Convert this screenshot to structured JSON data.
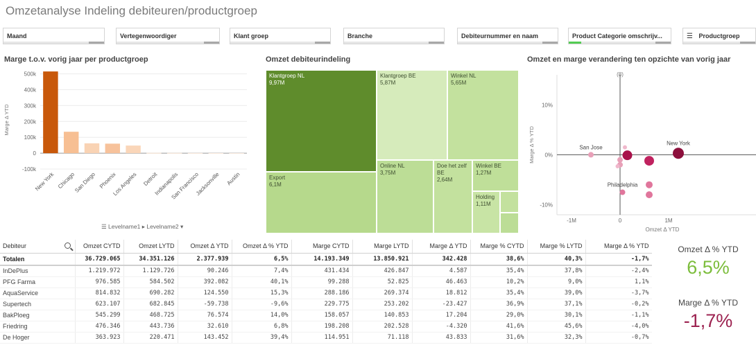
{
  "app": {
    "title": "Omzetanalyse Indeling debiteuren/productgroep"
  },
  "filters": [
    {
      "label": "Maand"
    },
    {
      "label": "Vertegenwoordiger"
    },
    {
      "label": "Klant groep"
    },
    {
      "label": "Branche"
    },
    {
      "label": "Debiteurnummer en naam"
    },
    {
      "label": "Product Categorie omschrijv..."
    },
    {
      "label": "Productgroep",
      "icon": "drill-down-icon"
    }
  ],
  "bar_panel": {
    "title": "Marge t.o.v. vorig jaar per productgroep",
    "level_nav": {
      "level1": "Levelname1",
      "level2": "Levelname2"
    }
  },
  "treemap_panel": {
    "title": "Omzet debiteurindeling",
    "tiles": [
      {
        "name": "Klantgroep NL",
        "value": "9,97M",
        "color": "#5f8c2c"
      },
      {
        "name": "Export",
        "value": "6,1M",
        "color": "#b6d98c"
      },
      {
        "name": "Klantgroep BE",
        "value": "5,87M",
        "color": "#d6ebbb"
      },
      {
        "name": "Winkel NL",
        "value": "5,65M",
        "color": "#c3e19e"
      },
      {
        "name": "Online NL",
        "value": "3,75M",
        "color": "#bcdd96"
      },
      {
        "name": "Doe het zelf BE",
        "value": "2,64M",
        "color": "#c3e19e"
      },
      {
        "name": "Winkel BE",
        "value": "1,27M",
        "color": "#bfdf99"
      },
      {
        "name": "Holding",
        "value": "1,11M",
        "color": "#c8e4a5"
      }
    ]
  },
  "scatter_panel": {
    "title": "Omzet en marge verandering ten opzichte van vorig jaar",
    "cluster_label": "(8)",
    "point_labels": [
      "San Jose",
      "New York",
      "Philadelphia"
    ]
  },
  "chart_data": [
    {
      "type": "bar",
      "title": "Marge t.o.v. vorig jaar per productgroep",
      "ylabel": "Marge Δ YTD",
      "categories": [
        "New York",
        "Chicago",
        "San Diego",
        "Phoenix",
        "Los Angeles",
        "Detroit",
        "Indianapolis",
        "San Francisco",
        "Jacksonville",
        "Austin"
      ],
      "values": [
        515000,
        135000,
        62000,
        60000,
        48000,
        2000,
        1500,
        1000,
        500,
        300
      ],
      "ylim": [
        -100000,
        520000
      ],
      "yticks": [
        -100000,
        0,
        100000,
        200000,
        300000,
        400000,
        500000
      ],
      "ytick_labels": [
        "-100k",
        "0",
        "100k",
        "200k",
        "300k",
        "400k",
        "500k"
      ],
      "colors": [
        "#c8580a",
        "#f7bf93",
        "#f9d3b4",
        "#f7c29b",
        "#fad6b9",
        "#fce6d4",
        "#fde9da",
        "#fdebdd",
        "#fdede0",
        "#fdeee2"
      ]
    },
    {
      "type": "treemap",
      "title": "Omzet debiteurindeling",
      "categories": [
        "Klantgroep NL",
        "Export",
        "Klantgroep BE",
        "Winkel NL",
        "Online NL",
        "Doe het zelf BE",
        "Winkel BE",
        "Holding"
      ],
      "values": [
        9.97,
        6.1,
        5.87,
        5.65,
        3.75,
        2.64,
        1.27,
        1.11
      ],
      "unit": "M"
    },
    {
      "type": "scatter",
      "title": "Omzet en marge verandering ten opzichte van vorig jaar",
      "xlabel": "Omzet Δ YTD",
      "ylabel": "Marge Δ % YTD",
      "xlim": [
        -1.3,
        2.8
      ],
      "ylim": [
        -12,
        16
      ],
      "x_unit": "M",
      "xticks": [
        -1,
        0,
        1
      ],
      "xtick_labels": [
        "-1M",
        "0",
        "1M"
      ],
      "yticks": [
        -10,
        0,
        10
      ],
      "ytick_labels": [
        "-10%",
        "0%",
        "10%"
      ],
      "points": [
        {
          "label": "San Jose",
          "x": -0.6,
          "y": 0.0,
          "size": 4,
          "color": "#e8a0b8"
        },
        {
          "label": "New York",
          "x": 1.2,
          "y": 0.3,
          "size": 8,
          "color": "#8c0f3c"
        },
        {
          "label": "Philadelphia",
          "x": 0.05,
          "y": -7.5,
          "size": 4,
          "color": "#e0769c"
        },
        {
          "label": "",
          "x": 0.1,
          "y": 1.5,
          "size": 3,
          "color": "#f0b8cc"
        },
        {
          "label": "",
          "x": 0.0,
          "y": -1.0,
          "size": 4,
          "color": "#e8a0b8"
        },
        {
          "label": "",
          "x": 0.0,
          "y": -2.0,
          "size": 4,
          "color": "#e8a0b8"
        },
        {
          "label": "",
          "x": -0.05,
          "y": -2.3,
          "size": 3,
          "color": "#f0b8cc"
        },
        {
          "label": "",
          "x": 0.15,
          "y": -0.1,
          "size": 7,
          "color": "#a8114a"
        },
        {
          "label": "",
          "x": 0.6,
          "y": -1.2,
          "size": 7,
          "color": "#c0225f"
        },
        {
          "label": "",
          "x": 0.6,
          "y": -6.0,
          "size": 5,
          "color": "#e0769c"
        },
        {
          "label": "",
          "x": 0.6,
          "y": -8.0,
          "size": 5,
          "color": "#e0769c"
        }
      ]
    }
  ],
  "table": {
    "columns": [
      "Debiteur",
      "Omzet CYTD",
      "Omzet LYTD",
      "Omzet Δ YTD",
      "Omzet Δ % YTD",
      "Marge CYTD",
      "Marge LYTD",
      "Marge Δ YTD",
      "Marge % CYTD",
      "Marge % LYTD",
      "Marge Δ % YTD"
    ],
    "totals": [
      "Totalen",
      "36.729.065",
      "34.351.126",
      "2.377.939",
      "6,5%",
      "14.193.349",
      "13.850.921",
      "342.428",
      "38,6%",
      "40,3%",
      "-1,7%"
    ],
    "rows": [
      [
        "InDePlus",
        "1.219.972",
        "1.129.726",
        "90.246",
        "7,4%",
        "431.434",
        "426.847",
        "4.587",
        "35,4%",
        "37,8%",
        "-2,4%"
      ],
      [
        "PFG Farma",
        "976.585",
        "584.502",
        "392.082",
        "40,1%",
        "99.288",
        "52.825",
        "46.463",
        "10,2%",
        "9,0%",
        "1,1%"
      ],
      [
        "AquaService",
        "814.832",
        "690.282",
        "124.550",
        "15,3%",
        "288.186",
        "269.374",
        "18.812",
        "35,4%",
        "39,0%",
        "-3,7%"
      ],
      [
        "Supertech",
        "623.107",
        "682.845",
        "-59.738",
        "-9,6%",
        "229.775",
        "253.202",
        "-23.427",
        "36,9%",
        "37,1%",
        "-0,2%"
      ],
      [
        "BakPloeg",
        "545.299",
        "468.725",
        "76.574",
        "14,0%",
        "158.057",
        "140.853",
        "17.204",
        "29,0%",
        "30,1%",
        "-1,1%"
      ],
      [
        "Friedring",
        "476.346",
        "443.736",
        "32.610",
        "6,8%",
        "198.208",
        "202.528",
        "-4.320",
        "41,6%",
        "45,6%",
        "-4,0%"
      ],
      [
        "De Hoger",
        "363.923",
        "220.471",
        "143.452",
        "39,4%",
        "114.951",
        "71.118",
        "43.833",
        "31,6%",
        "32,3%",
        "-0,7%"
      ]
    ]
  },
  "kpis": [
    {
      "label": "Omzet Δ % YTD",
      "value": "6,5%",
      "color": "#7cbd3c"
    },
    {
      "label": "Marge Δ % YTD",
      "value": "-1,7%",
      "color": "#9c2250"
    }
  ]
}
